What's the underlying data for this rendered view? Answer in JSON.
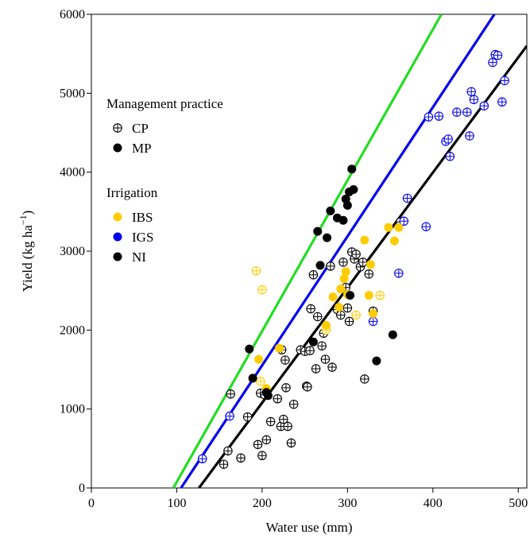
{
  "chart_data": {
    "type": "scatter",
    "title": "",
    "xlabel": "Water use (mm)",
    "ylabel": "Yield (kg ha",
    "ylabel_sup": "−1",
    "ylabel_close": ")",
    "xlim": [
      0,
      510
    ],
    "ylim": [
      0,
      6000
    ],
    "xticks": [
      0,
      100,
      200,
      300,
      400,
      500
    ],
    "yticks": [
      0,
      1000,
      2000,
      3000,
      4000,
      5000,
      6000
    ],
    "grid": false,
    "legend_position": "upper-left",
    "legend": {
      "management_title": "Management practice",
      "management_items": [
        {
          "label": "CP",
          "marker": "crossed-circle"
        },
        {
          "label": "MP",
          "marker": "filled-circle"
        }
      ],
      "irrigation_title": "Irrigation",
      "irrigation_items": [
        {
          "label": "IBS",
          "color": "#FFCC00"
        },
        {
          "label": "IGS",
          "color": "#0000EE"
        },
        {
          "label": "NI",
          "color": "#000000"
        }
      ]
    },
    "regression_lines": [
      {
        "color": "#22DD22",
        "x": [
          96,
          410
        ],
        "y": [
          0,
          6000
        ]
      },
      {
        "color": "#0000EE",
        "x": [
          105,
          472
        ],
        "y": [
          0,
          6000
        ]
      },
      {
        "color": "#000000",
        "x": [
          126,
          510
        ],
        "y": [
          0,
          5600
        ]
      }
    ],
    "series": [
      {
        "name": "CP-NI",
        "practice": "CP",
        "irrigation": "NI",
        "color": "#000000",
        "points": [
          [
            155,
            300
          ],
          [
            160,
            470
          ],
          [
            163,
            1190
          ],
          [
            175,
            380
          ],
          [
            183,
            900
          ],
          [
            195,
            550
          ],
          [
            198,
            1200
          ],
          [
            200,
            410
          ],
          [
            203,
            1180
          ],
          [
            205,
            610
          ],
          [
            210,
            840
          ],
          [
            218,
            1130
          ],
          [
            222,
            780
          ],
          [
            223,
            1750
          ],
          [
            225,
            870
          ],
          [
            227,
            1620
          ],
          [
            228,
            1270
          ],
          [
            230,
            780
          ],
          [
            234,
            570
          ],
          [
            237,
            1060
          ],
          [
            245,
            1750
          ],
          [
            250,
            1730
          ],
          [
            252,
            1290
          ],
          [
            253,
            1280
          ],
          [
            256,
            1740
          ],
          [
            257,
            2270
          ],
          [
            260,
            2700
          ],
          [
            263,
            1510
          ],
          [
            265,
            2170
          ],
          [
            270,
            1800
          ],
          [
            272,
            1960
          ],
          [
            274,
            1630
          ],
          [
            280,
            2810
          ],
          [
            282,
            1530
          ],
          [
            288,
            2260
          ],
          [
            292,
            2190
          ],
          [
            295,
            2860
          ],
          [
            298,
            2540
          ],
          [
            300,
            2280
          ],
          [
            302,
            2110
          ],
          [
            305,
            2990
          ],
          [
            308,
            2900
          ],
          [
            310,
            2960
          ],
          [
            315,
            2800
          ],
          [
            318,
            2860
          ],
          [
            320,
            1380
          ],
          [
            325,
            2710
          ],
          [
            330,
            2240
          ],
          [
            362,
            3370
          ]
        ]
      },
      {
        "name": "CP-IBS",
        "practice": "CP",
        "irrigation": "IBS",
        "color": "#FFCC00",
        "points": [
          [
            193,
            2750
          ],
          [
            200,
            2510
          ],
          [
            198,
            1350
          ],
          [
            275,
            2000
          ],
          [
            310,
            2190
          ],
          [
            338,
            2440
          ]
        ]
      },
      {
        "name": "CP-IGS",
        "practice": "CP",
        "irrigation": "IGS",
        "color": "#0000EE",
        "points": [
          [
            130,
            370
          ],
          [
            162,
            910
          ],
          [
            330,
            2110
          ],
          [
            360,
            2720
          ],
          [
            366,
            3380
          ],
          [
            370,
            3670
          ],
          [
            392,
            3310
          ],
          [
            395,
            4700
          ],
          [
            407,
            4710
          ],
          [
            415,
            4390
          ],
          [
            418,
            4420
          ],
          [
            420,
            4200
          ],
          [
            428,
            4760
          ],
          [
            440,
            4760
          ],
          [
            443,
            4460
          ],
          [
            445,
            5020
          ],
          [
            448,
            4920
          ],
          [
            460,
            4840
          ],
          [
            470,
            5390
          ],
          [
            473,
            5490
          ],
          [
            476,
            5480
          ],
          [
            481,
            4890
          ],
          [
            484,
            5160
          ]
        ]
      },
      {
        "name": "MP-IBS",
        "practice": "MP",
        "irrigation": "IBS",
        "color": "#FFCC00",
        "points": [
          [
            196,
            1630
          ],
          [
            205,
            1260
          ],
          [
            220,
            1770
          ],
          [
            275,
            2060
          ],
          [
            283,
            2420
          ],
          [
            290,
            2290
          ],
          [
            292,
            2520
          ],
          [
            296,
            2650
          ],
          [
            298,
            2740
          ],
          [
            300,
            2450
          ],
          [
            320,
            3140
          ],
          [
            325,
            2440
          ],
          [
            327,
            2830
          ],
          [
            330,
            2210
          ],
          [
            348,
            3300
          ],
          [
            355,
            3130
          ],
          [
            360,
            3300
          ]
        ]
      },
      {
        "name": "MP-NI",
        "practice": "MP",
        "irrigation": "NI",
        "color": "#000000",
        "points": [
          [
            185,
            1760
          ],
          [
            189,
            1390
          ],
          [
            205,
            1210
          ],
          [
            207,
            1170
          ],
          [
            260,
            1850
          ],
          [
            265,
            3250
          ],
          [
            268,
            2820
          ],
          [
            276,
            3170
          ],
          [
            280,
            3510
          ],
          [
            288,
            3420
          ],
          [
            295,
            3390
          ],
          [
            298,
            3660
          ],
          [
            300,
            3580
          ],
          [
            302,
            3750
          ],
          [
            303,
            2440
          ],
          [
            305,
            4040
          ],
          [
            307,
            3780
          ],
          [
            334,
            1610
          ],
          [
            353,
            1940
          ]
        ]
      }
    ]
  }
}
